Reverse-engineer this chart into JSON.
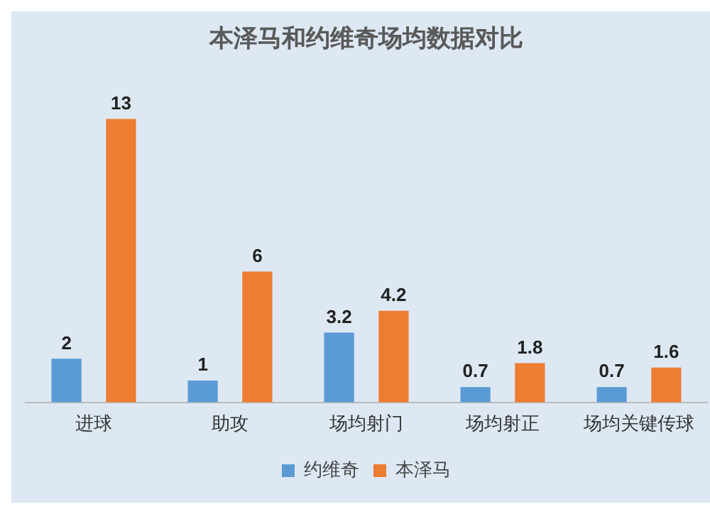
{
  "chart_data": {
    "type": "bar",
    "title": "本泽马和约维奇场均数据对比",
    "categories": [
      "进球",
      "助攻",
      "场均射门",
      "场均射正",
      "场均关键传球"
    ],
    "series": [
      {
        "name": "约维奇",
        "color": "#5b9bd5",
        "values": [
          2,
          1,
          3.2,
          0.7,
          0.7
        ]
      },
      {
        "name": "本泽马",
        "color": "#ed7d31",
        "values": [
          13,
          6,
          4.2,
          1.8,
          1.6
        ]
      }
    ],
    "data_labels": true,
    "legend": "bottom",
    "grid": false
  }
}
